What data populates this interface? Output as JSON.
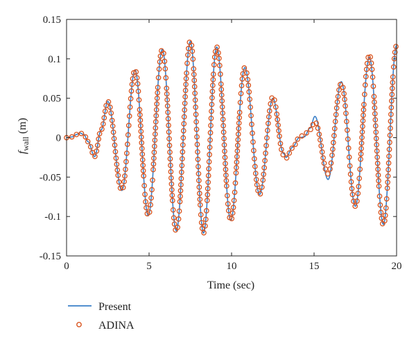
{
  "chart_data": {
    "type": "line",
    "title": "",
    "xlabel": "Time (sec)",
    "ylabel_main": "f",
    "ylabel_sub": "wall",
    "ylabel_unit": " (m)",
    "xlim": [
      0,
      20
    ],
    "ylim": [
      -0.15,
      0.15
    ],
    "x_ticks": [
      0,
      5,
      10,
      15,
      20
    ],
    "x_tick_labels": [
      "0",
      "5",
      "10",
      "15",
      "20"
    ],
    "y_ticks": [
      -0.15,
      -0.1,
      -0.05,
      0,
      0.05,
      0.1,
      0.15
    ],
    "y_tick_labels": [
      "-0.15",
      "-0.1",
      "-0.05",
      "0",
      "0.05",
      "0.1",
      "0.15"
    ],
    "grid": false,
    "legend_position": "below-left",
    "colors": {
      "present": "#3a7fc8",
      "adina": "#d9541e",
      "axis": "#222222"
    },
    "series": [
      {
        "name": "Present",
        "style": "line",
        "x": [
          0,
          0.35,
          0.6,
          0.8,
          1.05,
          1.3,
          1.7,
          2.1,
          2.5,
          3.35,
          4.15,
          4.95,
          5.8,
          6.65,
          7.5,
          8.3,
          9.1,
          9.95,
          10.8,
          11.7,
          12.5,
          13.15,
          13.3,
          13.7,
          14.1,
          14.4,
          14.75,
          15.05,
          15.85,
          16.65,
          17.5,
          18.35,
          19.2,
          20
        ],
        "y": [
          0,
          0.001,
          0.004,
          0.006,
          0.004,
          -0.005,
          -0.024,
          0.01,
          0.046,
          -0.067,
          0.086,
          -0.099,
          0.112,
          -0.118,
          0.122,
          -0.121,
          0.115,
          -0.105,
          0.089,
          -0.072,
          0.05,
          -0.02,
          -0.025,
          -0.012,
          0,
          0.001,
          0.012,
          0.027,
          -0.053,
          0.071,
          -0.087,
          0.102,
          -0.11,
          0.117
        ]
      },
      {
        "name": "ADINA",
        "style": "markers",
        "x": [
          0,
          0.35,
          0.6,
          0.8,
          1.05,
          1.3,
          1.7,
          2.1,
          2.5,
          3.35,
          4.15,
          4.95,
          5.8,
          6.65,
          7.5,
          8.3,
          9.1,
          9.95,
          10.8,
          11.7,
          12.5,
          13.15,
          13.3,
          13.7,
          14.1,
          14.4,
          14.75,
          15.05,
          15.85,
          16.65,
          17.5,
          18.35,
          19.2,
          20
        ],
        "y": [
          0,
          0.001,
          0.004,
          0.006,
          0.004,
          -0.005,
          -0.024,
          0.01,
          0.046,
          -0.067,
          0.086,
          -0.099,
          0.112,
          -0.119,
          0.123,
          -0.121,
          0.115,
          -0.105,
          0.089,
          -0.072,
          0.052,
          -0.022,
          -0.026,
          -0.013,
          0,
          0.004,
          0.01,
          0.02,
          -0.046,
          0.069,
          -0.087,
          0.105,
          -0.111,
          0.117
        ]
      }
    ]
  }
}
